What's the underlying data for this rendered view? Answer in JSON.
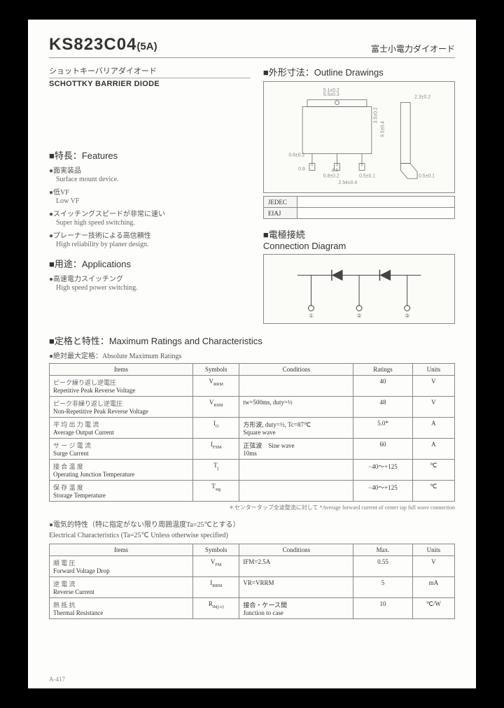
{
  "header": {
    "part": "KS823C04",
    "amp": "(5A)",
    "jp_right": "富士小電力ダイオード"
  },
  "subtitle": {
    "jp": "ショットキーバリアダイオード",
    "en": "SCHOTTKY BARRIER DIODE"
  },
  "outline": {
    "title": "■外形寸法：Outline Drawings",
    "jedec": "JEDEC",
    "eiaj": "EIAJ"
  },
  "features": {
    "title": "■特長：Features",
    "items": [
      {
        "jp": "●面実装品",
        "en": "Surface mount device."
      },
      {
        "jp": "●低VF",
        "en": "Low VF"
      },
      {
        "jp": "●スイッチングスピードが非常に速い",
        "en": "Super high speed switching."
      },
      {
        "jp": "●プレーナー技術による高信頼性",
        "en": "High reliability by planer design."
      }
    ]
  },
  "applications": {
    "title": "■用途：Applications",
    "items": [
      {
        "jp": "●高速電力スイッチング",
        "en": "High speed power switching."
      }
    ]
  },
  "connection": {
    "title": "■電極接続",
    "subtitle": "Connection Diagram"
  },
  "ratings": {
    "title": "■定格と特性：Maximum Ratings and Characteristics",
    "sub": "●絶対最大定格：Absolute Maximum Ratings",
    "headers": {
      "items": "Items",
      "symbols": "Symbols",
      "conditions": "Conditions",
      "ratings": "Ratings",
      "units": "Units"
    },
    "rows": [
      {
        "jp": "ピーク繰り返し逆電圧",
        "en": "Repetitive Peak Reverse Voltage",
        "sym": "V",
        "sub": "RRM",
        "cond": "",
        "rat": "40",
        "unit": "V"
      },
      {
        "jp": "ピーク非繰り返し逆電圧",
        "en": "Non-Repetitive Peak Reverse Voltage",
        "sym": "V",
        "sub": "RSM",
        "cond": "tw=500ms, duty=½",
        "rat": "48",
        "unit": "V"
      },
      {
        "jp": "平 均 出 力 電 流",
        "en": "Average Output Current",
        "sym": "I",
        "sub": "O",
        "cond": "方形波, duty=½, Tc=87℃\nSquare wave",
        "rat": "5.0*",
        "unit": "A"
      },
      {
        "jp": "サ ー ジ 電 流",
        "en": "Surge Current",
        "sym": "I",
        "sub": "FSM",
        "cond": "正弦波　Sine wave\n10ms",
        "rat": "60",
        "unit": "A"
      },
      {
        "jp": "接 合 温 度",
        "en": "Operating Junction Temperature",
        "sym": "T",
        "sub": "j",
        "cond": "",
        "rat": "−40〜+125",
        "unit": "℃"
      },
      {
        "jp": "保 存 温 度",
        "en": "Storage Temperature",
        "sym": "T",
        "sub": "stg",
        "cond": "",
        "rat": "−40〜+125",
        "unit": "℃"
      }
    ],
    "footnote": "＊センタータップ全波整流に対して\n*Average forward current of center tap full wave connection"
  },
  "electrical": {
    "sub_jp": "●電気的特性（特に指定がない限り周囲温度Ta=25℃とする）",
    "sub_en": "Electrical Characteristics (Ta=25℃ Unless otherwise specified)",
    "headers": {
      "items": "Items",
      "symbols": "Symbols",
      "conditions": "Conditions",
      "max": "Max.",
      "units": "Units"
    },
    "rows": [
      {
        "jp": "順 電 圧",
        "en": "Forward Voltage Drop",
        "sym": "V",
        "sub": "FM",
        "cond": "IFM=2.5A",
        "rat": "0.55",
        "unit": "V"
      },
      {
        "jp": "逆 電 流",
        "en": "Reverse Current",
        "sym": "I",
        "sub": "RRM",
        "cond": "VR=VRRM",
        "rat": "5",
        "unit": "mA"
      },
      {
        "jp": "熱 抵 抗",
        "en": "Thermal Resistance",
        "sym": "R",
        "sub": "th(j-c)",
        "cond": "接合・ケース間\nJunction to case",
        "rat": "10",
        "unit": "℃/W"
      }
    ]
  },
  "page_num": "A-417"
}
